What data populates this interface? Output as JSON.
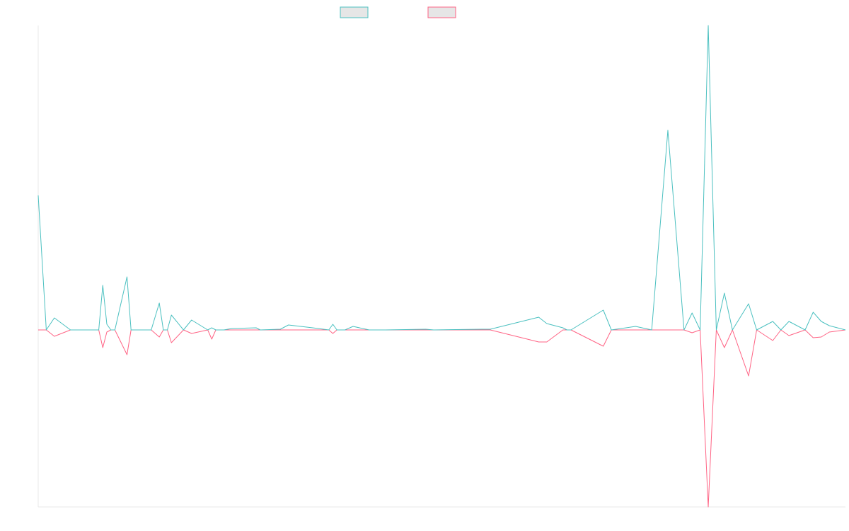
{
  "chart_data": {
    "type": "line",
    "legend": {
      "placement": "top-center",
      "items": [
        {
          "name": "",
          "stroke": "#4bc0c0",
          "fill": "#e6e6e6"
        },
        {
          "name": "",
          "stroke": "#ff6384",
          "fill": "#e6e6e6"
        }
      ]
    },
    "x": [
      0,
      0.5,
      1,
      2,
      4,
      7.5,
      8,
      8.5,
      9,
      9.5,
      11,
      11.5,
      12,
      14,
      15,
      15.5,
      16,
      16.5,
      18,
      19,
      21,
      21.5,
      22,
      23,
      24,
      27,
      27.5,
      30,
      31,
      34,
      36,
      36.5,
      37,
      38,
      39,
      41,
      43,
      48,
      49,
      55,
      56,
      62,
      63,
      65,
      65.5,
      66,
      70,
      71,
      74,
      76,
      78,
      80,
      81,
      82,
      83,
      84,
      85,
      86,
      88,
      89,
      91,
      92,
      93,
      95,
      96,
      97,
      98,
      100
    ],
    "series": [
      {
        "name": "",
        "color": "#4bc0c0",
        "values": [
          190,
          95,
          0,
          17,
          0,
          0,
          63,
          8,
          0,
          0,
          75,
          0,
          0,
          0,
          38,
          0,
          0,
          21,
          0,
          14,
          0,
          3,
          0,
          0,
          2,
          3,
          0,
          1,
          7,
          3,
          0,
          8,
          0,
          0,
          5,
          0,
          0,
          1,
          0,
          1,
          1,
          18,
          9,
          3,
          0,
          0,
          28,
          0,
          5,
          0,
          282,
          0,
          24,
          0,
          430,
          0,
          52,
          0,
          37,
          0,
          12,
          0,
          12,
          0,
          25,
          12,
          6,
          0
        ]
      },
      {
        "name": "",
        "color": "#ff6384",
        "values": [
          0,
          0,
          0,
          -9,
          0,
          0,
          -25,
          -3,
          0,
          0,
          -35,
          0,
          0,
          0,
          -10,
          0,
          0,
          -18,
          0,
          -5,
          0,
          -13,
          0,
          0,
          0,
          0,
          0,
          0,
          0,
          0,
          0,
          -5,
          0,
          0,
          0,
          0,
          0,
          0,
          0,
          0,
          0,
          -17,
          -17,
          0,
          0,
          0,
          -23,
          0,
          0,
          0,
          0,
          0,
          -4,
          0,
          -250,
          0,
          -25,
          0,
          -65,
          0,
          -15,
          0,
          -8,
          0,
          -11,
          -10,
          -3,
          0
        ]
      }
    ],
    "xlim": [
      0,
      100
    ],
    "ylim": [
      -250,
      430
    ],
    "grid": false
  }
}
